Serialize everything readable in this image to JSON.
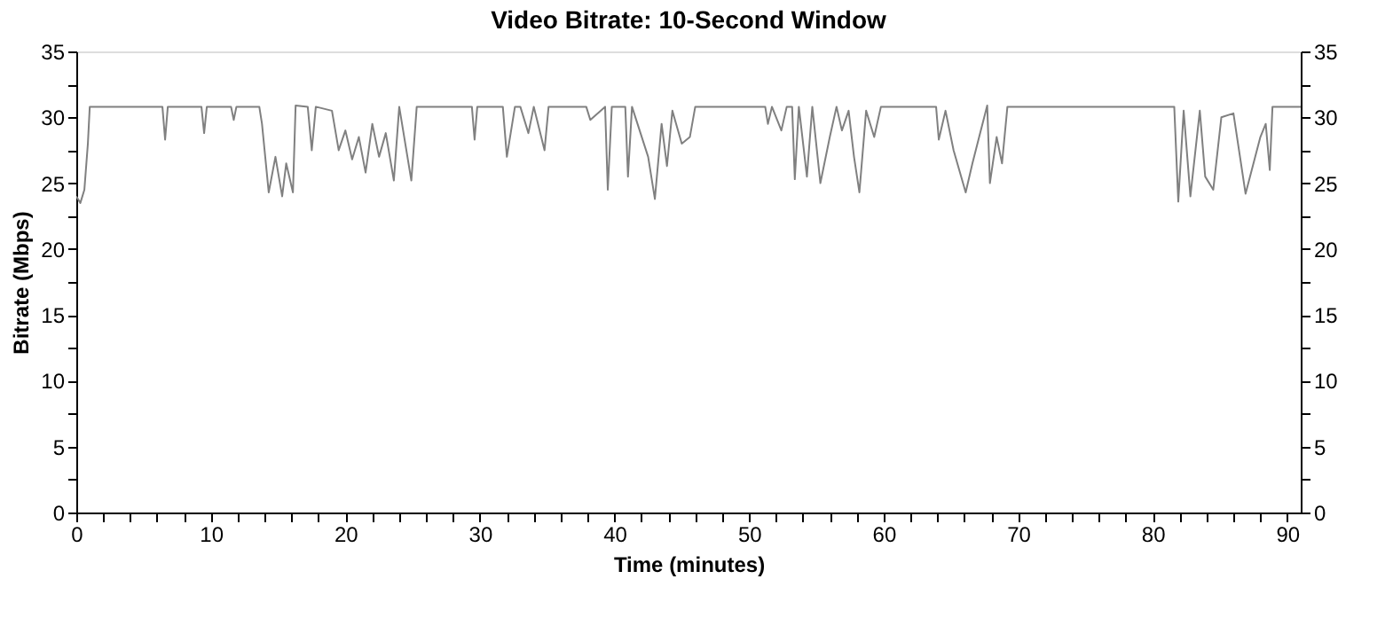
{
  "chart_data": {
    "type": "line",
    "title": "Video Bitrate: 10-Second Window",
    "xlabel": "Time (minutes)",
    "ylabel": "Bitrate (Mbps)",
    "xlim": [
      0,
      91
    ],
    "ylim": [
      0,
      35
    ],
    "y2lim": [
      0,
      35
    ],
    "xticks": [
      0,
      {
        "value": 2,
        "label": null
      },
      {
        "value": 4,
        "label": null
      },
      {
        "value": 6,
        "label": null
      },
      {
        "value": 8,
        "label": null
      },
      10,
      {
        "value": 12,
        "label": null
      },
      {
        "value": 14,
        "label": null
      },
      {
        "value": 16,
        "label": null
      },
      {
        "value": 18,
        "label": null
      },
      20,
      {
        "value": 22,
        "label": null
      },
      {
        "value": 24,
        "label": null
      },
      {
        "value": 26,
        "label": null
      },
      {
        "value": 28,
        "label": null
      },
      30,
      {
        "value": 32,
        "label": null
      },
      {
        "value": 34,
        "label": null
      },
      {
        "value": 36,
        "label": null
      },
      {
        "value": 38,
        "label": null
      },
      40,
      {
        "value": 42,
        "label": null
      },
      {
        "value": 44,
        "label": null
      },
      {
        "value": 46,
        "label": null
      },
      {
        "value": 48,
        "label": null
      },
      50,
      {
        "value": 52,
        "label": null
      },
      {
        "value": 54,
        "label": null
      },
      {
        "value": 56,
        "label": null
      },
      {
        "value": 58,
        "label": null
      },
      60,
      {
        "value": 62,
        "label": null
      },
      {
        "value": 64,
        "label": null
      },
      {
        "value": 66,
        "label": null
      },
      {
        "value": 68,
        "label": null
      },
      70,
      {
        "value": 72,
        "label": null
      },
      {
        "value": 74,
        "label": null
      },
      {
        "value": 76,
        "label": null
      },
      {
        "value": 78,
        "label": null
      },
      80,
      {
        "value": 82,
        "label": null
      },
      {
        "value": 84,
        "label": null
      },
      {
        "value": 86,
        "label": null
      },
      {
        "value": 88,
        "label": null
      },
      90
    ],
    "yticks": [
      0,
      {
        "value": 2.5,
        "label": null
      },
      5,
      {
        "value": 7.5,
        "label": null
      },
      10,
      {
        "value": 12.5,
        "label": null
      },
      15,
      {
        "value": 17.5,
        "label": null
      },
      20,
      {
        "value": 22.5,
        "label": null
      },
      25,
      {
        "value": 27.5,
        "label": null
      },
      30,
      {
        "value": 32.5,
        "label": null
      },
      35
    ],
    "y2ticks": [
      0,
      {
        "value": 2.5,
        "label": null
      },
      5,
      {
        "value": 7.5,
        "label": null
      },
      10,
      {
        "value": 12.5,
        "label": null
      },
      15,
      {
        "value": 17.5,
        "label": null
      },
      20,
      {
        "value": 22.5,
        "label": null
      },
      25,
      {
        "value": 27.5,
        "label": null
      },
      30,
      {
        "value": 32.5,
        "label": null
      },
      35
    ],
    "grid": false,
    "legend": false,
    "marker": "none",
    "line_style": "solid",
    "series": [
      {
        "color": "#808080",
        "x": [
          0,
          0.3,
          0.6,
          0.86,
          1.0,
          3,
          6.4,
          6.6,
          6.8,
          9.3,
          9.5,
          9.7,
          11.5,
          11.7,
          11.9,
          13.6,
          13.8,
          14.3,
          14.8,
          15.3,
          15.6,
          16.1,
          16.3,
          17.2,
          17.5,
          17.8,
          19.0,
          19.5,
          20.0,
          20.5,
          21.0,
          21.5,
          22.0,
          22.5,
          23.0,
          23.6,
          24.0,
          24.9,
          25.3,
          29.4,
          29.6,
          29.8,
          31.7,
          32.0,
          32.6,
          33.0,
          33.6,
          34.0,
          34.8,
          35.1,
          37.9,
          38.2,
          39.3,
          39.5,
          39.8,
          40.8,
          41.0,
          41.3,
          42.5,
          43.0,
          43.5,
          43.9,
          44.3,
          45.0,
          45.6,
          46.0,
          51.2,
          51.4,
          51.7,
          52.4,
          52.8,
          53.2,
          53.4,
          53.7,
          54.3,
          54.7,
          55.3,
          56.0,
          56.5,
          56.9,
          57.4,
          57.8,
          58.2,
          58.7,
          59.3,
          59.8,
          63.9,
          64.1,
          64.6,
          65.2,
          66.1,
          66.6,
          67.1,
          67.7,
          67.9,
          68.4,
          68.8,
          69.2,
          81.6,
          81.9,
          82.3,
          82.8,
          83.5,
          83.9,
          84.5,
          85.1,
          86.0,
          86.9,
          88.0,
          88.4,
          88.7,
          88.9,
          91
        ],
        "values": [
          24.0,
          23.5,
          24.5,
          28.0,
          30.8,
          30.8,
          30.8,
          28.3,
          30.8,
          30.8,
          28.8,
          30.8,
          30.8,
          29.8,
          30.8,
          30.8,
          29.5,
          24.3,
          27.0,
          24.0,
          26.5,
          24.3,
          30.9,
          30.8,
          27.5,
          30.8,
          30.5,
          27.5,
          29.0,
          26.8,
          28.5,
          25.8,
          29.5,
          27.0,
          28.8,
          25.2,
          30.8,
          25.2,
          30.8,
          30.8,
          28.3,
          30.8,
          30.8,
          27.0,
          30.8,
          30.8,
          28.8,
          30.8,
          27.5,
          30.8,
          30.8,
          29.8,
          30.8,
          24.5,
          30.8,
          30.8,
          25.5,
          30.8,
          27.0,
          23.8,
          29.5,
          26.3,
          30.5,
          28.0,
          28.5,
          30.8,
          30.8,
          29.5,
          30.8,
          29.0,
          30.8,
          30.8,
          25.3,
          30.8,
          25.5,
          30.8,
          25.0,
          28.5,
          30.8,
          29.0,
          30.5,
          27.0,
          24.3,
          30.5,
          28.5,
          30.8,
          30.8,
          28.3,
          30.5,
          27.5,
          24.3,
          26.5,
          28.5,
          30.9,
          25.0,
          28.5,
          26.5,
          30.8,
          30.8,
          23.6,
          30.5,
          24.0,
          30.5,
          25.5,
          24.5,
          30.0,
          30.3,
          24.2,
          28.5,
          29.5,
          26.0,
          30.8,
          30.8
        ]
      }
    ]
  }
}
